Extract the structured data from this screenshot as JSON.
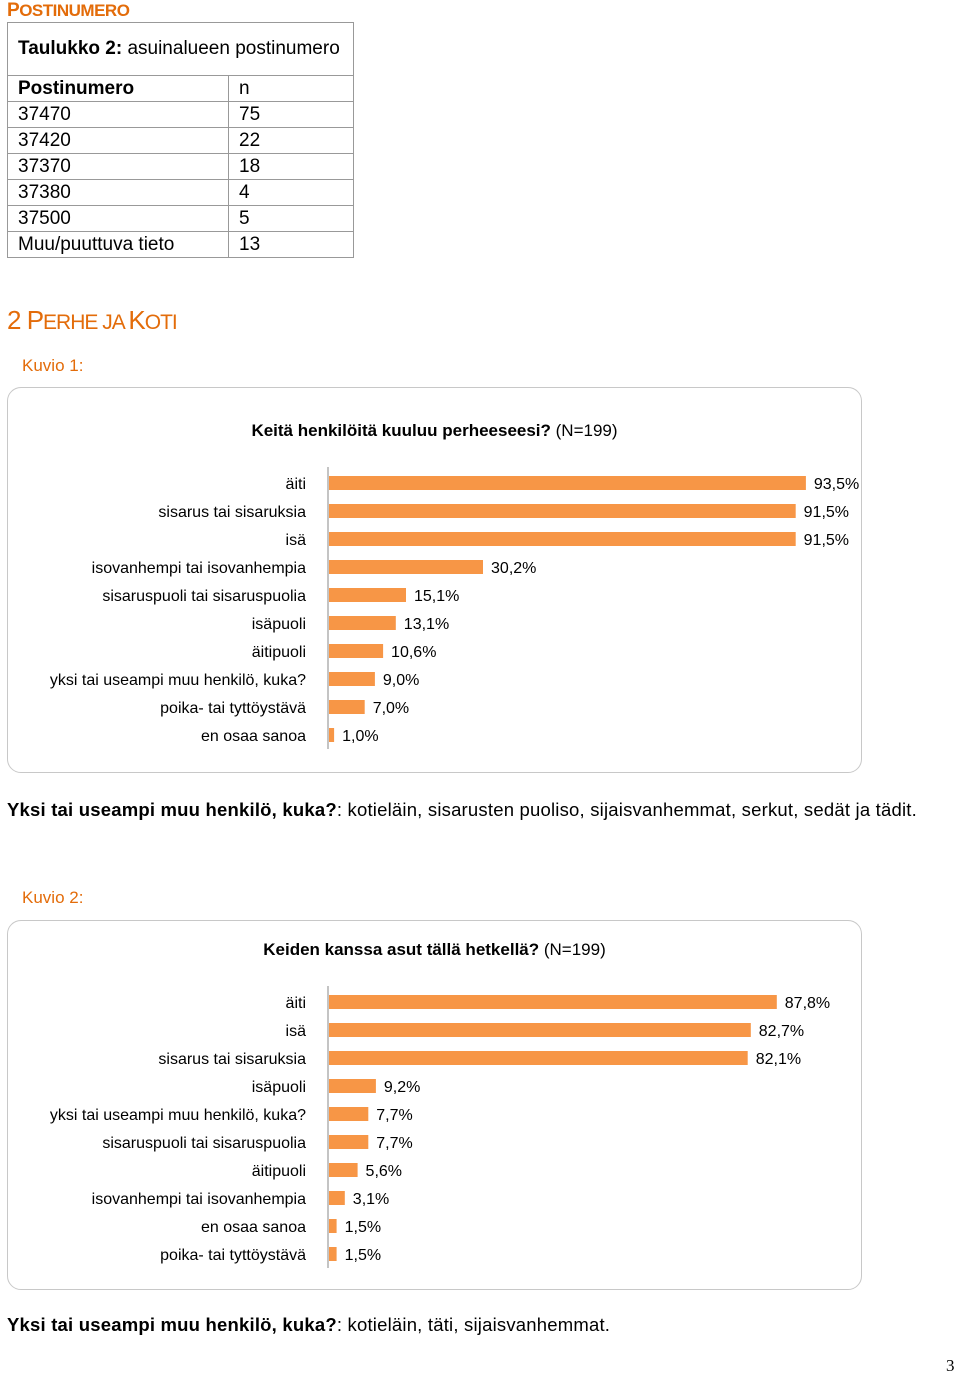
{
  "section": {
    "first": "P",
    "rest": "OSTINUMERO"
  },
  "table": {
    "caption_bold": "Taulukko 2:",
    "caption_rest": " asuinalueen postinumero",
    "header": {
      "col1": "Postinumero",
      "col2": "n"
    },
    "rows": [
      {
        "code": "37470",
        "n": "75"
      },
      {
        "code": "37420",
        "n": "22"
      },
      {
        "code": "37370",
        "n": "18"
      },
      {
        "code": "37380",
        "n": "4"
      },
      {
        "code": "37500",
        "n": "5"
      },
      {
        "code": "Muu/puuttuva tieto",
        "n": "13"
      }
    ]
  },
  "heading": {
    "num": "2 ",
    "p1": "P",
    "p2": "ERHE JA ",
    "p3": "K",
    "p4": "OTI"
  },
  "chart_data": [
    {
      "type": "bar",
      "kuvio": "Kuvio 1:",
      "title_bold": "Keitä henkilöitä kuuluu perheeseesi?",
      "title_rest": " (N=199)",
      "categories": [
        "äiti",
        "sisarus tai sisaruksia",
        "isä",
        "isovanhempi tai isovanhempia",
        "sisaruspuoli tai sisaruspuolia",
        "isäpuoli",
        "äitipuoli",
        "yksi tai useampi muu henkilö, kuka?",
        "poika- tai tyttöystävä",
        "en osaa sanoa"
      ],
      "values": [
        93.5,
        91.5,
        91.5,
        30.2,
        15.1,
        13.1,
        10.6,
        9.0,
        7.0,
        1.0
      ],
      "labels": [
        "93,5%",
        "91,5%",
        "91,5%",
        "30,2%",
        "15,1%",
        "13,1%",
        "10,6%",
        "9,0%",
        "7,0%",
        "1,0%"
      ],
      "bar_color": "#f79646",
      "xlim": [
        0,
        100
      ]
    },
    {
      "type": "bar",
      "kuvio": "Kuvio 2:",
      "title_bold": "Keiden kanssa asut tällä hetkellä?",
      "title_rest": " (N=199)",
      "categories": [
        "äiti",
        "isä",
        "sisarus tai sisaruksia",
        "isäpuoli",
        "yksi tai useampi muu henkilö, kuka?",
        "sisaruspuoli tai sisaruspuolia",
        "äitipuoli",
        "isovanhempi tai isovanhempia",
        "en osaa sanoa",
        "poika- tai tyttöystävä"
      ],
      "values": [
        87.8,
        82.7,
        82.1,
        9.2,
        7.7,
        7.7,
        5.6,
        3.1,
        1.5,
        1.5
      ],
      "labels": [
        "87,8%",
        "82,7%",
        "82,1%",
        "9,2%",
        "7,7%",
        "7,7%",
        "5,6%",
        "3,1%",
        "1,5%",
        "1,5%"
      ],
      "bar_color": "#f79646",
      "xlim": [
        0,
        100
      ]
    }
  ],
  "notes": [
    {
      "bold": "Yksi tai useampi muu henkilö, kuka?",
      "rest": ": kotieläin, sisarusten puoliso, sijaisvanhemmat, serkut, sedät ja tädit."
    },
    {
      "bold": "Yksi tai useampi muu henkilö, kuka?",
      "rest": ": kotieläin, täti, sijaisvanhemmat."
    }
  ],
  "page_number": "3"
}
